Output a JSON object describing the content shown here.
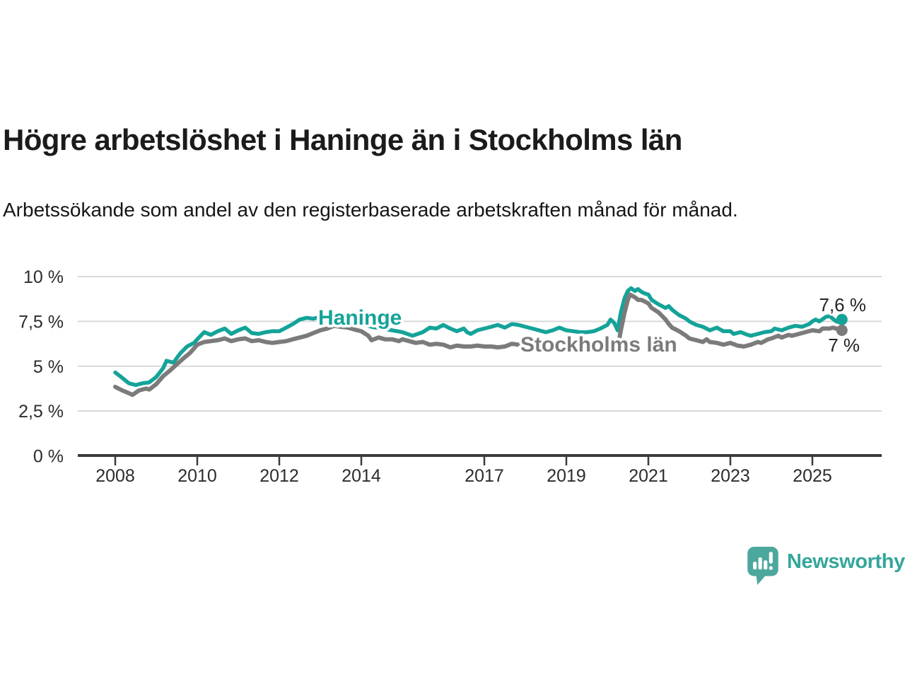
{
  "chart_data": {
    "type": "line",
    "title": "Högre arbetslöshet i Haninge än i Stockholms län",
    "subtitle": "Arbetssökande som andel av den registerbaserade arbetskraften månad för månad.",
    "xlabel": "",
    "ylabel": "",
    "x_range": [
      2008,
      2025.75
    ],
    "ylim": [
      0,
      10
    ],
    "grid": true,
    "legend": "inline-labels",
    "unit": "%",
    "decimal_style": "comma",
    "colors": {
      "haninge": "#14a399",
      "stockholm": "#7b7b7b",
      "grid": "#d9d9d9",
      "axis": "#3b3b3b",
      "tick_text": "#2c2c2c",
      "value_text": "#242424"
    },
    "yticks": [
      {
        "value": 10,
        "label": "10 %"
      },
      {
        "value": 7.5,
        "label": "7,5 %"
      },
      {
        "value": 5,
        "label": "5 %"
      },
      {
        "value": 2.5,
        "label": "2,5 %"
      },
      {
        "value": 0,
        "label": "0 %"
      }
    ],
    "xticks": [
      {
        "value": 2008,
        "label": "2008"
      },
      {
        "value": 2010,
        "label": "2010"
      },
      {
        "value": 2012,
        "label": "2012"
      },
      {
        "value": 2014,
        "label": "2014"
      },
      {
        "value": 2017,
        "label": "2017"
      },
      {
        "value": 2019,
        "label": "2019"
      },
      {
        "value": 2021,
        "label": "2021"
      },
      {
        "value": 2023,
        "label": "2023"
      },
      {
        "value": 2025,
        "label": "2025"
      }
    ],
    "series": [
      {
        "name": "Haninge",
        "color": "#14a399",
        "end_label": "7,6 %",
        "end_value": 7.6,
        "points": [
          [
            2008.0,
            4.65
          ],
          [
            2008.17,
            4.35
          ],
          [
            2008.33,
            4.05
          ],
          [
            2008.5,
            3.95
          ],
          [
            2008.67,
            4.05
          ],
          [
            2008.83,
            4.1
          ],
          [
            2009.0,
            4.4
          ],
          [
            2009.17,
            4.9
          ],
          [
            2009.25,
            5.3
          ],
          [
            2009.42,
            5.2
          ],
          [
            2009.58,
            5.7
          ],
          [
            2009.75,
            6.1
          ],
          [
            2009.92,
            6.3
          ],
          [
            2010.0,
            6.5
          ],
          [
            2010.17,
            6.9
          ],
          [
            2010.33,
            6.75
          ],
          [
            2010.5,
            6.95
          ],
          [
            2010.67,
            7.1
          ],
          [
            2010.83,
            6.8
          ],
          [
            2011.0,
            7.0
          ],
          [
            2011.17,
            7.15
          ],
          [
            2011.33,
            6.85
          ],
          [
            2011.5,
            6.8
          ],
          [
            2011.67,
            6.9
          ],
          [
            2011.83,
            6.95
          ],
          [
            2012.0,
            6.95
          ],
          [
            2012.17,
            7.15
          ],
          [
            2012.33,
            7.35
          ],
          [
            2012.5,
            7.6
          ],
          [
            2012.67,
            7.7
          ],
          [
            2012.83,
            7.65
          ],
          [
            2013.0,
            7.75
          ],
          [
            2013.25,
            7.6
          ],
          [
            2013.5,
            7.55
          ],
          [
            2013.75,
            7.45
          ],
          [
            2014.0,
            7.35
          ],
          [
            2014.25,
            7.2
          ],
          [
            2014.5,
            7.1
          ],
          [
            2014.75,
            7.0
          ],
          [
            2015.0,
            6.9
          ],
          [
            2015.25,
            6.7
          ],
          [
            2015.5,
            6.9
          ],
          [
            2015.67,
            7.15
          ],
          [
            2015.83,
            7.1
          ],
          [
            2016.0,
            7.3
          ],
          [
            2016.17,
            7.1
          ],
          [
            2016.33,
            6.95
          ],
          [
            2016.5,
            7.1
          ],
          [
            2016.58,
            6.9
          ],
          [
            2016.67,
            6.8
          ],
          [
            2016.83,
            7.0
          ],
          [
            2017.0,
            7.1
          ],
          [
            2017.17,
            7.2
          ],
          [
            2017.33,
            7.3
          ],
          [
            2017.5,
            7.15
          ],
          [
            2017.67,
            7.35
          ],
          [
            2017.83,
            7.3
          ],
          [
            2018.0,
            7.2
          ],
          [
            2018.17,
            7.1
          ],
          [
            2018.33,
            7.0
          ],
          [
            2018.5,
            6.9
          ],
          [
            2018.67,
            7.0
          ],
          [
            2018.83,
            7.15
          ],
          [
            2019.0,
            7.0
          ],
          [
            2019.17,
            6.95
          ],
          [
            2019.33,
            6.9
          ],
          [
            2019.5,
            6.9
          ],
          [
            2019.67,
            6.95
          ],
          [
            2019.83,
            7.1
          ],
          [
            2020.0,
            7.3
          ],
          [
            2020.08,
            7.6
          ],
          [
            2020.17,
            7.4
          ],
          [
            2020.25,
            7.0
          ],
          [
            2020.33,
            8.0
          ],
          [
            2020.42,
            8.8
          ],
          [
            2020.5,
            9.2
          ],
          [
            2020.58,
            9.35
          ],
          [
            2020.67,
            9.2
          ],
          [
            2020.75,
            9.3
          ],
          [
            2020.83,
            9.15
          ],
          [
            2020.92,
            9.05
          ],
          [
            2021.0,
            9.0
          ],
          [
            2021.08,
            8.7
          ],
          [
            2021.25,
            8.45
          ],
          [
            2021.42,
            8.25
          ],
          [
            2021.5,
            8.35
          ],
          [
            2021.58,
            8.15
          ],
          [
            2021.75,
            7.85
          ],
          [
            2021.92,
            7.65
          ],
          [
            2022.0,
            7.5
          ],
          [
            2022.17,
            7.3
          ],
          [
            2022.33,
            7.2
          ],
          [
            2022.5,
            7.0
          ],
          [
            2022.67,
            7.15
          ],
          [
            2022.83,
            6.95
          ],
          [
            2023.0,
            6.95
          ],
          [
            2023.08,
            6.8
          ],
          [
            2023.25,
            6.9
          ],
          [
            2023.42,
            6.75
          ],
          [
            2023.5,
            6.7
          ],
          [
            2023.67,
            6.8
          ],
          [
            2023.83,
            6.9
          ],
          [
            2024.0,
            6.95
          ],
          [
            2024.08,
            7.1
          ],
          [
            2024.25,
            7.0
          ],
          [
            2024.42,
            7.15
          ],
          [
            2024.58,
            7.25
          ],
          [
            2024.75,
            7.2
          ],
          [
            2024.92,
            7.35
          ],
          [
            2025.0,
            7.5
          ],
          [
            2025.08,
            7.6
          ],
          [
            2025.17,
            7.5
          ],
          [
            2025.33,
            7.75
          ],
          [
            2025.42,
            7.8
          ],
          [
            2025.5,
            7.65
          ],
          [
            2025.58,
            7.5
          ],
          [
            2025.67,
            7.45
          ],
          [
            2025.72,
            7.6
          ]
        ]
      },
      {
        "name": "Stockholms län",
        "color": "#7b7b7b",
        "end_label": "7 %",
        "end_value": 7.0,
        "points": [
          [
            2008.0,
            3.85
          ],
          [
            2008.17,
            3.65
          ],
          [
            2008.33,
            3.5
          ],
          [
            2008.42,
            3.4
          ],
          [
            2008.58,
            3.65
          ],
          [
            2008.75,
            3.75
          ],
          [
            2008.83,
            3.7
          ],
          [
            2009.0,
            4.0
          ],
          [
            2009.17,
            4.45
          ],
          [
            2009.33,
            4.75
          ],
          [
            2009.5,
            5.1
          ],
          [
            2009.67,
            5.45
          ],
          [
            2009.83,
            5.75
          ],
          [
            2010.0,
            6.2
          ],
          [
            2010.17,
            6.35
          ],
          [
            2010.33,
            6.4
          ],
          [
            2010.5,
            6.45
          ],
          [
            2010.67,
            6.55
          ],
          [
            2010.83,
            6.4
          ],
          [
            2011.0,
            6.5
          ],
          [
            2011.17,
            6.55
          ],
          [
            2011.33,
            6.4
          ],
          [
            2011.5,
            6.45
          ],
          [
            2011.67,
            6.35
          ],
          [
            2011.83,
            6.3
          ],
          [
            2012.0,
            6.35
          ],
          [
            2012.17,
            6.4
          ],
          [
            2012.33,
            6.5
          ],
          [
            2012.5,
            6.6
          ],
          [
            2012.67,
            6.7
          ],
          [
            2012.83,
            6.85
          ],
          [
            2013.0,
            7.0
          ],
          [
            2013.17,
            7.1
          ],
          [
            2013.33,
            7.25
          ],
          [
            2013.5,
            7.2
          ],
          [
            2013.67,
            7.15
          ],
          [
            2013.83,
            7.05
          ],
          [
            2014.0,
            6.95
          ],
          [
            2014.17,
            6.7
          ],
          [
            2014.25,
            6.45
          ],
          [
            2014.42,
            6.6
          ],
          [
            2014.58,
            6.5
          ],
          [
            2014.75,
            6.5
          ],
          [
            2014.92,
            6.4
          ],
          [
            2015.0,
            6.5
          ],
          [
            2015.17,
            6.4
          ],
          [
            2015.33,
            6.3
          ],
          [
            2015.5,
            6.35
          ],
          [
            2015.67,
            6.2
          ],
          [
            2015.83,
            6.25
          ],
          [
            2016.0,
            6.2
          ],
          [
            2016.17,
            6.05
          ],
          [
            2016.33,
            6.15
          ],
          [
            2016.5,
            6.1
          ],
          [
            2016.67,
            6.1
          ],
          [
            2016.83,
            6.15
          ],
          [
            2017.0,
            6.1
          ],
          [
            2017.17,
            6.1
          ],
          [
            2017.33,
            6.05
          ],
          [
            2017.5,
            6.1
          ],
          [
            2017.67,
            6.25
          ],
          [
            2017.83,
            6.2
          ],
          [
            2018.0,
            6.2
          ],
          [
            2018.25,
            6.1
          ],
          [
            2018.5,
            6.0
          ],
          [
            2018.75,
            5.95
          ],
          [
            2019.0,
            6.0
          ],
          [
            2019.25,
            6.05
          ],
          [
            2019.5,
            6.1
          ],
          [
            2019.75,
            6.25
          ],
          [
            2019.92,
            6.35
          ],
          [
            2020.0,
            6.45
          ],
          [
            2020.08,
            6.3
          ],
          [
            2020.17,
            6.1
          ],
          [
            2020.25,
            6.0
          ],
          [
            2020.33,
            7.0
          ],
          [
            2020.42,
            8.0
          ],
          [
            2020.5,
            8.7
          ],
          [
            2020.55,
            9.0
          ],
          [
            2020.67,
            8.85
          ],
          [
            2020.75,
            8.7
          ],
          [
            2020.83,
            8.7
          ],
          [
            2020.92,
            8.6
          ],
          [
            2021.0,
            8.5
          ],
          [
            2021.08,
            8.25
          ],
          [
            2021.25,
            8.0
          ],
          [
            2021.42,
            7.6
          ],
          [
            2021.5,
            7.35
          ],
          [
            2021.58,
            7.15
          ],
          [
            2021.75,
            6.95
          ],
          [
            2021.92,
            6.7
          ],
          [
            2022.0,
            6.55
          ],
          [
            2022.17,
            6.45
          ],
          [
            2022.33,
            6.35
          ],
          [
            2022.42,
            6.5
          ],
          [
            2022.5,
            6.35
          ],
          [
            2022.67,
            6.3
          ],
          [
            2022.83,
            6.2
          ],
          [
            2023.0,
            6.3
          ],
          [
            2023.17,
            6.15
          ],
          [
            2023.33,
            6.1
          ],
          [
            2023.5,
            6.2
          ],
          [
            2023.67,
            6.35
          ],
          [
            2023.75,
            6.3
          ],
          [
            2023.92,
            6.5
          ],
          [
            2024.0,
            6.55
          ],
          [
            2024.17,
            6.7
          ],
          [
            2024.25,
            6.6
          ],
          [
            2024.42,
            6.75
          ],
          [
            2024.5,
            6.7
          ],
          [
            2024.67,
            6.8
          ],
          [
            2024.83,
            6.9
          ],
          [
            2025.0,
            7.0
          ],
          [
            2025.17,
            6.95
          ],
          [
            2025.25,
            7.1
          ],
          [
            2025.42,
            7.1
          ],
          [
            2025.5,
            7.15
          ],
          [
            2025.58,
            7.1
          ],
          [
            2025.67,
            7.0
          ],
          [
            2025.72,
            7.0
          ]
        ]
      }
    ]
  },
  "branding": {
    "logo_text": "Newsworthy",
    "logo_icon": "bar-chart-speech-bubble-icon",
    "logo_icon_color": "#4ca89c",
    "logo_text_color": "#35a69a"
  }
}
